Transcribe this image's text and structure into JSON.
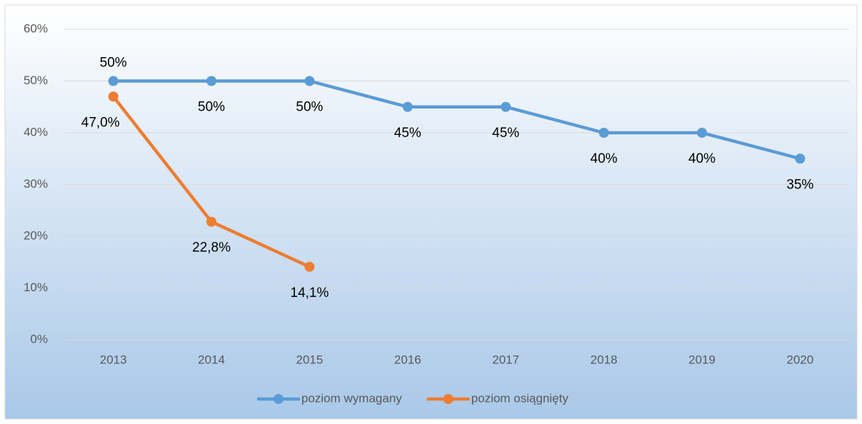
{
  "chart_data": {
    "type": "line",
    "categories": [
      "2013",
      "2014",
      "2015",
      "2016",
      "2017",
      "2018",
      "2019",
      "2020"
    ],
    "series": [
      {
        "name": "poziom wymagany",
        "color": "#5b9bd5",
        "values": [
          50,
          50,
          50,
          45,
          45,
          40,
          40,
          35
        ],
        "value_labels": [
          "50%",
          "50%",
          "50%",
          "45%",
          "45%",
          "40%",
          "40%",
          "35%"
        ]
      },
      {
        "name": "poziom osiągnięty",
        "color": "#ed7d31",
        "values": [
          47.0,
          22.8,
          14.1,
          null,
          null,
          null,
          null,
          null
        ],
        "value_labels": [
          "47,0%",
          "22,8%",
          "14,1%",
          null,
          null,
          null,
          null,
          null
        ]
      }
    ],
    "ylim": [
      0,
      60
    ],
    "yticks": [
      {
        "value": 0,
        "label": "0%"
      },
      {
        "value": 10,
        "label": "10%"
      },
      {
        "value": 20,
        "label": "20%"
      },
      {
        "value": 30,
        "label": "30%"
      },
      {
        "value": 40,
        "label": "40%"
      },
      {
        "value": 50,
        "label": "50%"
      },
      {
        "value": 60,
        "label": "60%"
      }
    ],
    "grid": true,
    "legend": "bottom"
  }
}
